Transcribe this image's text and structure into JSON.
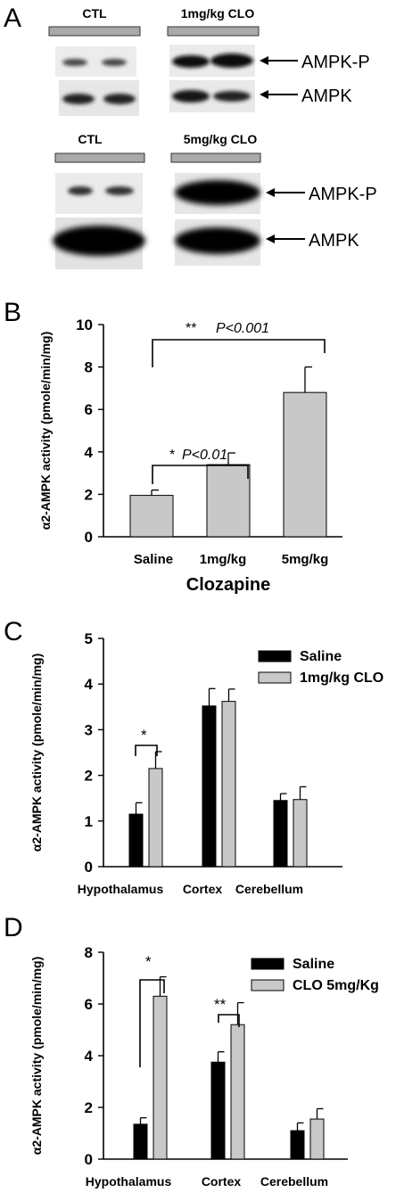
{
  "panel_letters": [
    "A",
    "B",
    "C",
    "D"
  ],
  "blots": {
    "top": {
      "left_label": "CTL",
      "right_label": "1mg/kg CLO",
      "row_labels": [
        "AMPK-P",
        "AMPK"
      ]
    },
    "bottom": {
      "left_label": "CTL",
      "right_label": "5mg/kg CLO",
      "row_labels": [
        "AMPK-P",
        "AMPK"
      ]
    }
  },
  "chart_data": [
    {
      "panel": "B",
      "type": "bar",
      "title": "",
      "xlabel": "Clozapine",
      "ylabel": "α2-AMPK activity (pmole/min/mg)",
      "categories": [
        "Saline",
        "1mg/kg",
        "5mg/kg"
      ],
      "values": [
        1.95,
        3.4,
        6.8
      ],
      "errors": [
        0.25,
        0.55,
        1.2
      ],
      "ylim": [
        0,
        10
      ],
      "yticks": [
        "0",
        "2",
        "4",
        "6",
        "8",
        "10"
      ],
      "bar_color": "#c8c8c8",
      "annotations": [
        {
          "stars": "*",
          "text": "P<0.01"
        },
        {
          "stars": "**",
          "text": "P<0.001"
        }
      ]
    },
    {
      "panel": "C",
      "type": "bar",
      "title": "",
      "xlabel": "",
      "ylabel": "α2-AMPK activity (pmole/min/mg)",
      "categories": [
        "Hypothalamus",
        "Cortex",
        "Cerebellum"
      ],
      "series": [
        {
          "name": "Saline",
          "color": "#000000",
          "values": [
            1.15,
            3.52,
            1.45
          ],
          "errors": [
            0.25,
            0.38,
            0.15
          ]
        },
        {
          "name": "1mg/kg CLO",
          "color": "#c8c8c8",
          "values": [
            2.15,
            3.62,
            1.47
          ],
          "errors": [
            0.37,
            0.27,
            0.28
          ]
        }
      ],
      "ylim": [
        0,
        5
      ],
      "yticks": [
        "0",
        "1",
        "2",
        "3",
        "4",
        "5"
      ],
      "legend": "top-right",
      "annotations": [
        {
          "stars": "*",
          "text": ""
        }
      ]
    },
    {
      "panel": "D",
      "type": "bar",
      "title": "",
      "xlabel": "",
      "ylabel": "α2-AMPK activity (pmole/min/mg)",
      "categories": [
        "Hypothalamus",
        "Cortex",
        "Cerebellum"
      ],
      "series": [
        {
          "name": "Saline",
          "color": "#000000",
          "values": [
            1.35,
            3.75,
            1.1
          ],
          "errors": [
            0.25,
            0.4,
            0.3
          ]
        },
        {
          "name": "CLO 5mg/Kg",
          "color": "#c8c8c8",
          "values": [
            6.3,
            5.2,
            1.55
          ],
          "errors": [
            0.75,
            0.85,
            0.4
          ]
        }
      ],
      "ylim": [
        0,
        8
      ],
      "yticks": [
        "0",
        "2",
        "4",
        "6",
        "8"
      ],
      "legend": "top-right",
      "annotations": [
        {
          "stars": "*",
          "text": ""
        },
        {
          "stars": "**",
          "text": ""
        }
      ]
    }
  ]
}
